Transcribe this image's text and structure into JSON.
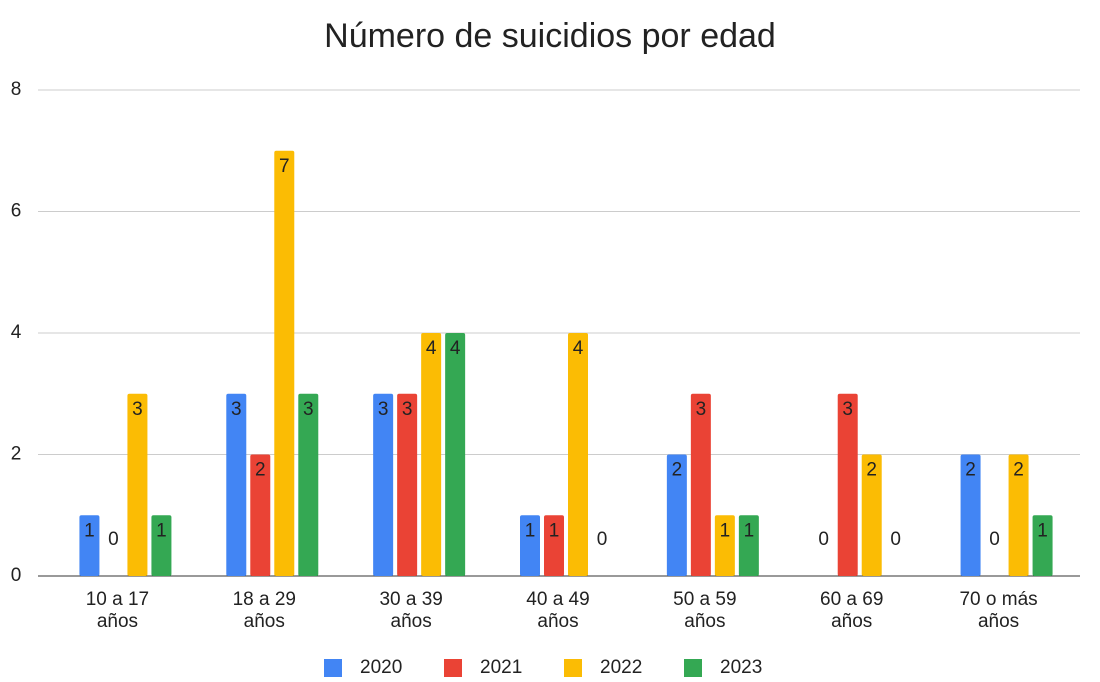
{
  "chart_data": {
    "type": "bar",
    "title": "Número de suicidios por edad",
    "categories": [
      "10 a 17\naños",
      "18 a 29\naños",
      "30 a 39\naños",
      "40 a 49\naños",
      "50 a 59\naños",
      "60 a 69\naños",
      "70 o más\naños"
    ],
    "series": [
      {
        "name": "2020",
        "color": "#4285f4",
        "values": [
          1,
          3,
          3,
          1,
          2,
          0,
          2
        ]
      },
      {
        "name": "2021",
        "color": "#ea4335",
        "values": [
          0,
          2,
          3,
          1,
          3,
          3,
          0
        ]
      },
      {
        "name": "2022",
        "color": "#fbbc04",
        "values": [
          3,
          7,
          4,
          4,
          1,
          2,
          2
        ]
      },
      {
        "name": "2023",
        "color": "#34a853",
        "values": [
          1,
          3,
          4,
          0,
          1,
          0,
          1
        ]
      }
    ],
    "ylim": [
      0,
      8
    ],
    "yticks": [
      0,
      2,
      4,
      6,
      8
    ],
    "grid": true,
    "legend": "bottom"
  }
}
